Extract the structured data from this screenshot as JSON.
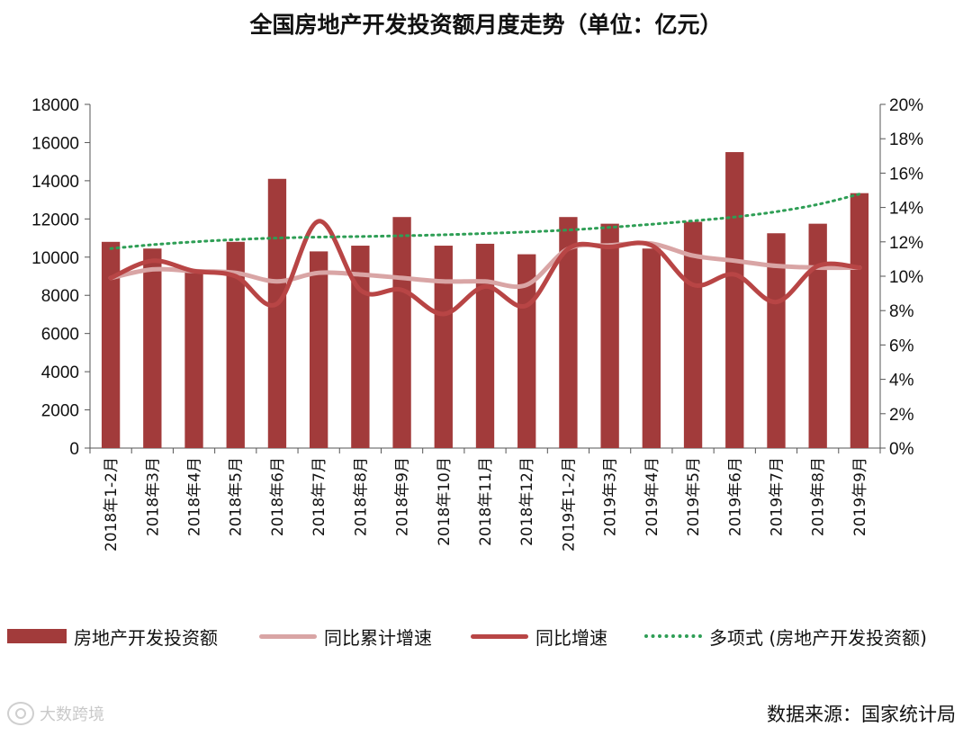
{
  "chart_data": {
    "type": "bar",
    "title": "全国房地产开发投资额月度走势（单位：亿元）",
    "categories": [
      "2018年1-2月",
      "2018年3月",
      "2018年4月",
      "2018年5月",
      "2018年6月",
      "2018年7月",
      "2018年8月",
      "2018年9月",
      "2018年10月",
      "2018年11月",
      "2018年12月",
      "2019年1-2月",
      "2019年3月",
      "2019年4月",
      "2019年5月",
      "2019年6月",
      "2019年7月",
      "2019年8月",
      "2019年9月"
    ],
    "y_left": {
      "min": 0,
      "max": 18000,
      "step": 2000,
      "ticks": [
        "0",
        "2000",
        "4000",
        "6000",
        "8000",
        "10000",
        "12000",
        "14000",
        "16000",
        "18000"
      ]
    },
    "y_right": {
      "min": 0,
      "max": 20,
      "step": 2,
      "ticks": [
        "0%",
        "2%",
        "4%",
        "6%",
        "8%",
        "10%",
        "12%",
        "14%",
        "16%",
        "18%",
        "20%"
      ]
    },
    "series": [
      {
        "name": "房地产开发投资额",
        "type": "bar",
        "axis": "left",
        "color": "#a23b3b",
        "values": [
          10800,
          10450,
          9300,
          10800,
          14100,
          10300,
          10600,
          12100,
          10600,
          10700,
          10150,
          12100,
          11750,
          10450,
          11850,
          15500,
          11250,
          11750,
          13350
        ]
      },
      {
        "name": "同比累计增速",
        "type": "line",
        "axis": "right",
        "color": "#d9a5a5",
        "values": [
          9.9,
          10.4,
          10.3,
          10.2,
          9.7,
          10.2,
          10.1,
          9.9,
          9.7,
          9.7,
          9.5,
          11.6,
          11.8,
          11.9,
          11.2,
          10.9,
          10.6,
          10.5,
          10.5
        ]
      },
      {
        "name": "同比增速",
        "type": "line",
        "axis": "right",
        "color": "#b84545",
        "values": [
          9.9,
          10.9,
          10.3,
          10.0,
          8.4,
          13.2,
          9.2,
          9.2,
          7.8,
          9.4,
          8.3,
          11.6,
          11.7,
          11.8,
          9.5,
          10.1,
          8.5,
          10.6,
          10.5
        ]
      },
      {
        "name": "多项式 (房地产开发投资额)",
        "type": "trend",
        "axis": "left",
        "color": "#2e9e55",
        "values": [
          10450,
          10650,
          10800,
          10920,
          11000,
          11050,
          11080,
          11120,
          11170,
          11240,
          11320,
          11420,
          11560,
          11720,
          11900,
          12100,
          12380,
          12760,
          13300
        ]
      }
    ],
    "legend_position": "bottom",
    "grid": false
  },
  "source": "数据来源：国家统计局",
  "watermark": "大数跨境"
}
